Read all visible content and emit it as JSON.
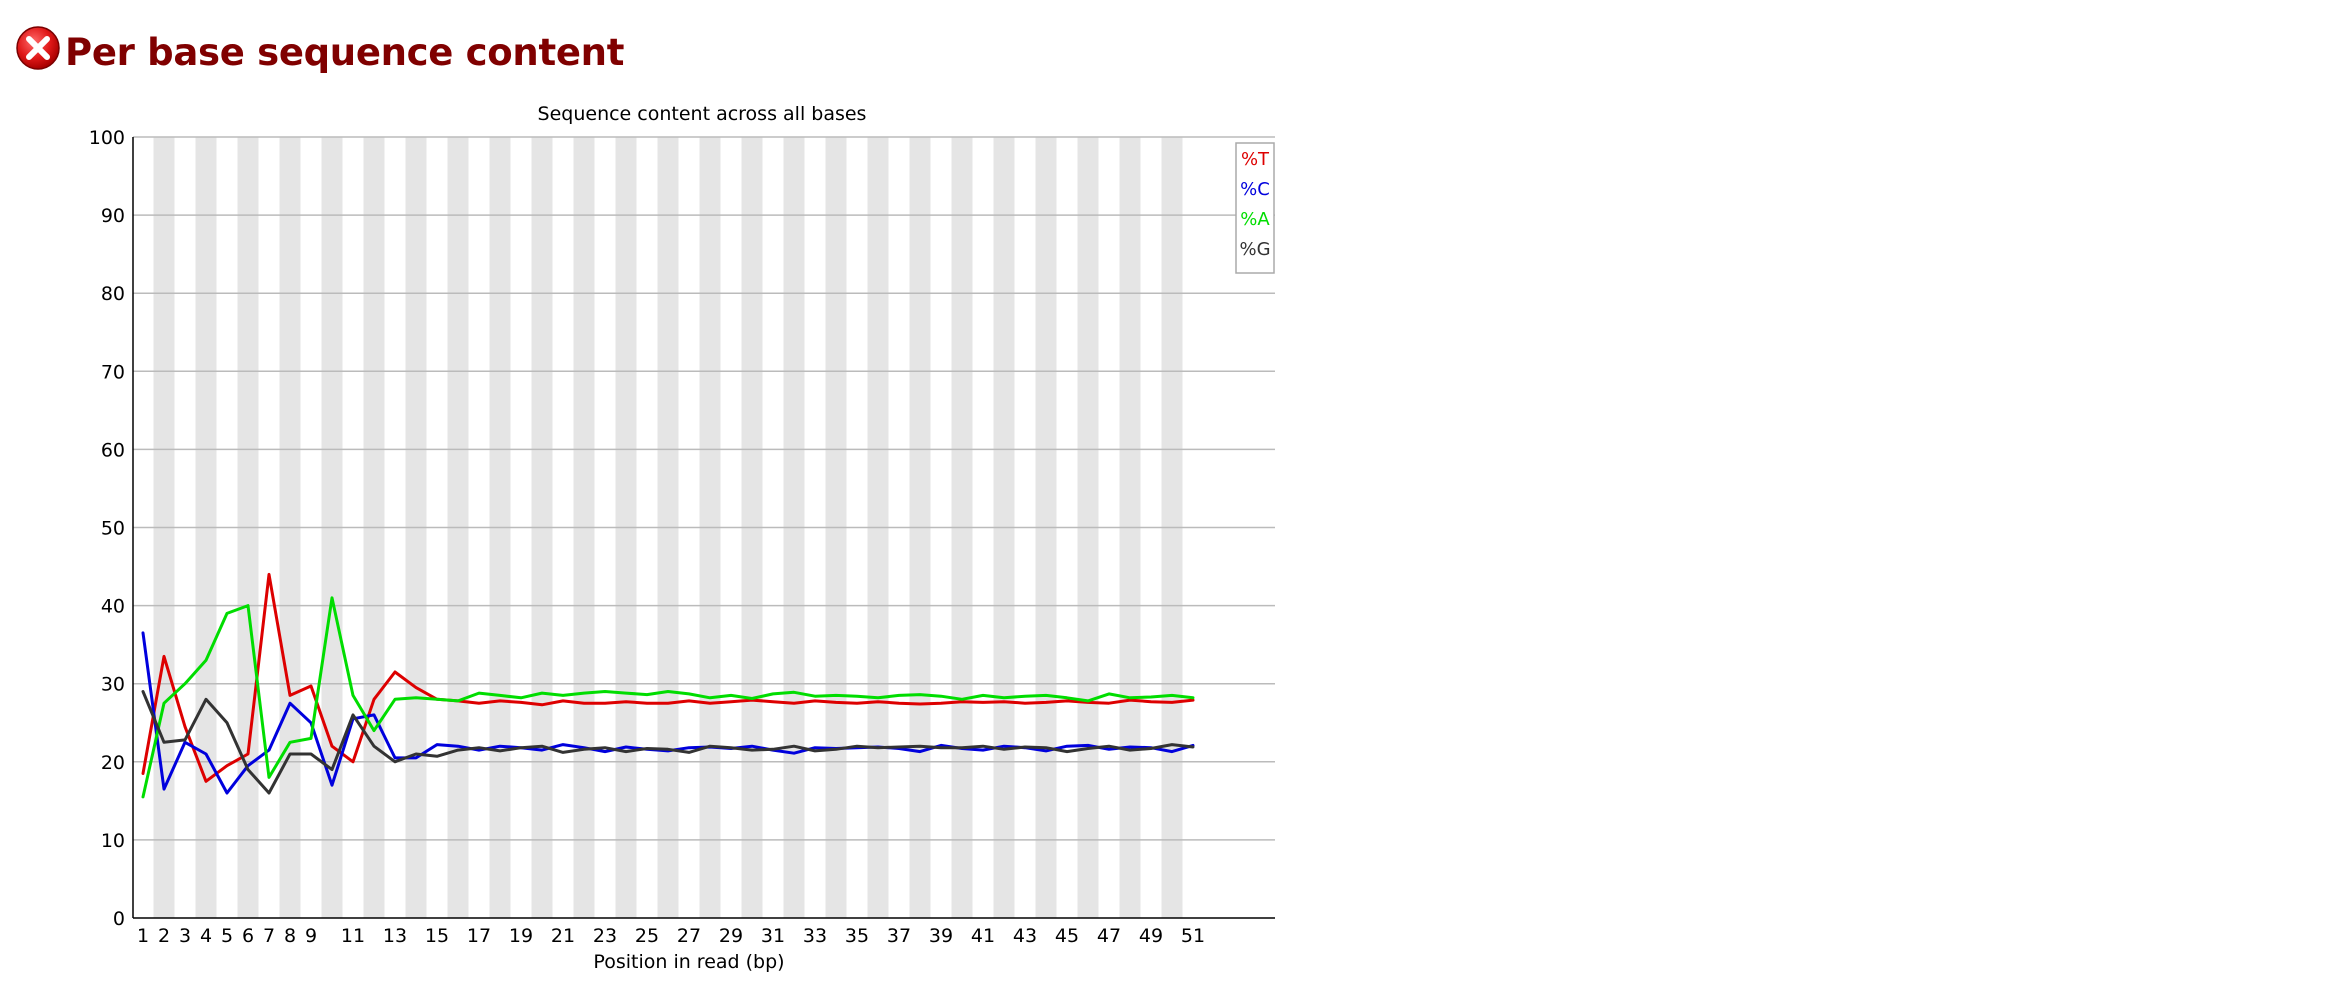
{
  "header": {
    "status_icon": "error-icon",
    "title": "Per base sequence content"
  },
  "colors": {
    "title": "#800000",
    "T": "#dd0000",
    "C": "#0000dd",
    "A": "#00dd00",
    "G": "#333333",
    "stripe": "#e5e5e5",
    "grid": "#bbbbbb"
  },
  "chart_data": {
    "type": "line",
    "title": "Sequence content across all bases",
    "xlabel": "Position in read (bp)",
    "ylabel": "",
    "ylim": [
      0,
      100
    ],
    "yticks": [
      0,
      10,
      20,
      30,
      40,
      50,
      60,
      70,
      80,
      90,
      100
    ],
    "categories": [
      "1",
      "2",
      "3",
      "4",
      "5",
      "6",
      "7",
      "8",
      "9",
      "10",
      "11",
      "12",
      "13",
      "14",
      "15",
      "16",
      "17",
      "18",
      "19",
      "20",
      "21",
      "22",
      "23",
      "24",
      "25",
      "26",
      "27",
      "28",
      "29",
      "30",
      "31",
      "32",
      "33",
      "34",
      "35",
      "36",
      "37",
      "38",
      "39",
      "40",
      "41",
      "42",
      "43",
      "44",
      "45",
      "46",
      "47",
      "48",
      "49",
      "50",
      "51"
    ],
    "tick_labels": [
      "1",
      "2",
      "3",
      "4",
      "5",
      "6",
      "7",
      "8",
      "9",
      "11",
      "13",
      "15",
      "17",
      "19",
      "21",
      "23",
      "25",
      "27",
      "29",
      "31",
      "33",
      "35",
      "37",
      "39",
      "41",
      "43",
      "45",
      "47",
      "49",
      "51"
    ],
    "grid": true,
    "legend_position": "top-right",
    "series": [
      {
        "name": "%T",
        "color": "#dd0000",
        "values": [
          18.5,
          33.5,
          24.5,
          17.5,
          19.5,
          21.0,
          44.0,
          28.5,
          29.7,
          22.0,
          20.0,
          28.0,
          31.5,
          29.5,
          28.0,
          27.8,
          27.5,
          27.8,
          27.6,
          27.3,
          27.8,
          27.5,
          27.5,
          27.7,
          27.5,
          27.5,
          27.8,
          27.5,
          27.7,
          27.9,
          27.7,
          27.5,
          27.8,
          27.6,
          27.5,
          27.7,
          27.5,
          27.4,
          27.5,
          27.7,
          27.6,
          27.7,
          27.5,
          27.6,
          27.8,
          27.6,
          27.5,
          27.9,
          27.7,
          27.6,
          27.9
        ]
      },
      {
        "name": "%C",
        "color": "#0000dd",
        "values": [
          36.5,
          16.5,
          22.5,
          21.0,
          16.0,
          19.5,
          21.5,
          27.5,
          25.0,
          17.0,
          25.5,
          26.0,
          20.5,
          20.5,
          22.2,
          22.0,
          21.5,
          22.0,
          21.8,
          21.5,
          22.2,
          21.8,
          21.3,
          21.9,
          21.6,
          21.4,
          21.8,
          21.9,
          21.7,
          22.0,
          21.5,
          21.1,
          21.8,
          21.7,
          21.8,
          21.9,
          21.7,
          21.3,
          22.1,
          21.7,
          21.5,
          22.0,
          21.8,
          21.4,
          22.0,
          22.1,
          21.6,
          21.9,
          21.8,
          21.3,
          22.1
        ]
      },
      {
        "name": "%A",
        "color": "#00dd00",
        "values": [
          15.5,
          27.5,
          30.0,
          33.0,
          39.0,
          40.0,
          18.0,
          22.5,
          23.0,
          41.0,
          28.5,
          24.0,
          28.0,
          28.2,
          28.0,
          27.8,
          28.8,
          28.5,
          28.2,
          28.8,
          28.5,
          28.8,
          29.0,
          28.8,
          28.6,
          29.0,
          28.7,
          28.2,
          28.5,
          28.1,
          28.7,
          28.9,
          28.4,
          28.5,
          28.4,
          28.2,
          28.5,
          28.6,
          28.4,
          28.0,
          28.5,
          28.2,
          28.4,
          28.5,
          28.2,
          27.8,
          28.7,
          28.2,
          28.3,
          28.5,
          28.2
        ]
      },
      {
        "name": "%G",
        "color": "#333333",
        "values": [
          29.0,
          22.5,
          22.8,
          28.0,
          25.0,
          19.0,
          16.0,
          21.0,
          21.0,
          19.0,
          26.0,
          22.0,
          20.0,
          21.0,
          20.7,
          21.5,
          21.8,
          21.4,
          21.8,
          22.0,
          21.2,
          21.6,
          21.8,
          21.3,
          21.7,
          21.6,
          21.2,
          22.0,
          21.8,
          21.5,
          21.6,
          22.0,
          21.4,
          21.6,
          22.0,
          21.8,
          21.9,
          22.0,
          21.8,
          21.8,
          22.0,
          21.6,
          21.9,
          21.8,
          21.3,
          21.7,
          22.0,
          21.5,
          21.7,
          22.2,
          21.9
        ]
      }
    ]
  }
}
